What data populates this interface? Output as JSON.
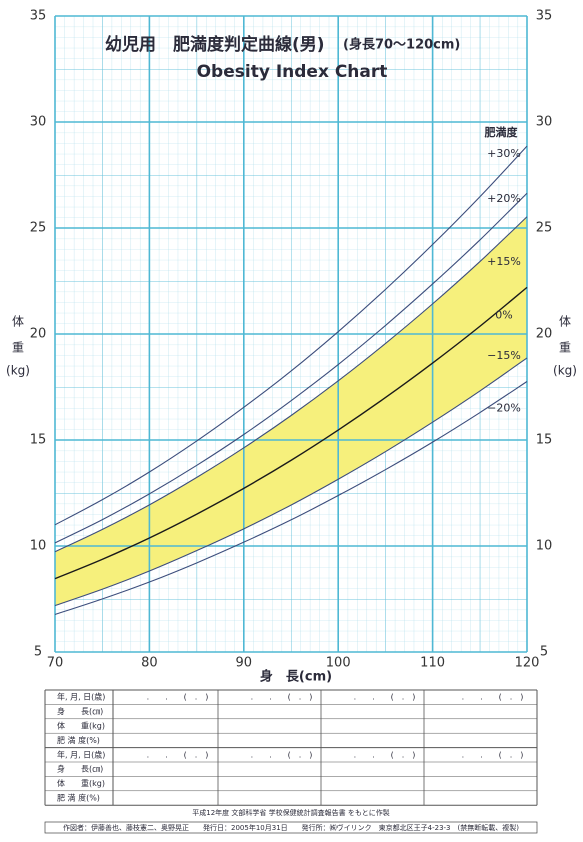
{
  "chart_data": {
    "type": "line",
    "title": "幼児用　肥満度判定曲線(男)",
    "title_note": "(身長70〜120cm)",
    "subtitle": "Obesity Index Chart",
    "xlabel": "身　長(cm)",
    "ylabel": [
      "体",
      "重",
      "(kg)"
    ],
    "legend_title": "肥満度",
    "x": [
      70,
      75,
      80,
      85,
      90,
      95,
      100,
      105,
      110,
      115,
      120
    ],
    "series": [
      {
        "name": "+30%",
        "color": "#3c4d7c",
        "values": [
          11.0,
          12.18,
          13.49,
          14.95,
          16.54,
          18.25,
          20.11,
          22.1,
          24.22,
          26.47,
          28.86
        ]
      },
      {
        "name": "+20%",
        "color": "#3c4d7c",
        "values": [
          10.15,
          11.24,
          12.46,
          13.8,
          15.26,
          16.85,
          18.56,
          20.4,
          22.36,
          24.43,
          26.64
        ]
      },
      {
        "name": "+15%",
        "color": "#3c4d7c",
        "values": [
          9.73,
          10.78,
          11.94,
          13.23,
          14.63,
          16.15,
          17.79,
          19.55,
          21.42,
          23.41,
          25.53
        ]
      },
      {
        "name": "0%",
        "color": "#1a1a1a",
        "values": [
          8.46,
          9.37,
          10.38,
          11.5,
          12.72,
          14.04,
          15.47,
          17.0,
          18.63,
          20.36,
          22.2
        ]
      },
      {
        "name": "−15%",
        "color": "#3c4d7c",
        "values": [
          7.19,
          7.96,
          8.82,
          9.78,
          10.81,
          11.93,
          13.15,
          14.45,
          15.84,
          17.31,
          18.87
        ]
      },
      {
        "name": "−20%",
        "color": "#3c4d7c",
        "values": [
          6.77,
          7.5,
          8.3,
          9.2,
          10.18,
          11.23,
          12.38,
          13.6,
          14.9,
          16.29,
          17.76
        ]
      }
    ],
    "band_color": "#f6f07c",
    "grid_color": "#4fb8d4",
    "xlim": [
      70,
      120
    ],
    "xticks": [
      70,
      80,
      90,
      100,
      110,
      120
    ],
    "ylim": [
      5,
      35
    ],
    "yticks": [
      5,
      10,
      15,
      20,
      25,
      30,
      35
    ],
    "grid": true
  },
  "table": {
    "rows": [
      [
        "年, 月, 日(歳)",
        ".　　.　　(　.　)",
        ".　　.　　(　.　)",
        ".　　.　　(　.　)",
        ".　　.　　(　.　)"
      ],
      [
        "身　　長(㎝)"
      ],
      [
        "体　　重(kg)"
      ],
      [
        "肥 満 度(%)"
      ],
      [
        "年, 月, 日(歳)",
        ".　　.　　(　.　)",
        ".　　.　　(　.　)",
        ".　　.　　(　.　)",
        ".　　.　　(　.　)"
      ],
      [
        "身　　長(㎝)"
      ],
      [
        "体　　重(kg)"
      ],
      [
        "肥 満 度(%)"
      ]
    ]
  },
  "footer": {
    "source": "平成12年度 文部科学省 学校保健統計調査報告書 をもとに作製",
    "credits": "作図者：伊藤善也、藤枝憲二、奥野晃正　　発行日：2005年10月31日　　発行所：㈱ヴイリンク　東京都北区王子4-23-3　(禁無断転載、複製)"
  }
}
